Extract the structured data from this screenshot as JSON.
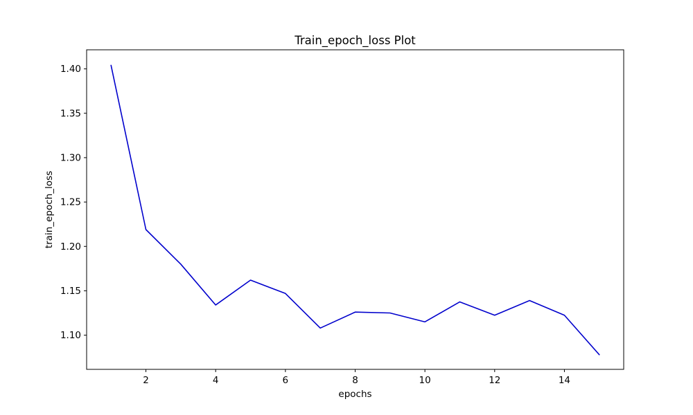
{
  "chart_data": {
    "type": "line",
    "title": "Train_epoch_loss Plot",
    "xlabel": "epochs",
    "ylabel": "train_epoch_loss",
    "xlim": [
      0.3,
      15.7
    ],
    "ylim": [
      1.0615,
      1.4215
    ],
    "xticks": [
      2,
      4,
      6,
      8,
      10,
      12,
      14
    ],
    "xtick_labels": [
      "2",
      "4",
      "6",
      "8",
      "10",
      "12",
      "14"
    ],
    "yticks": [
      1.1,
      1.15,
      1.2,
      1.25,
      1.3,
      1.35,
      1.4
    ],
    "ytick_labels": [
      "1.10",
      "1.15",
      "1.20",
      "1.25",
      "1.30",
      "1.35",
      "1.40"
    ],
    "grid": false,
    "series": [
      {
        "color": "#0000cc",
        "x": [
          1,
          2,
          3,
          4,
          5,
          6,
          7,
          8,
          9,
          10,
          11,
          12,
          13,
          14,
          15
        ],
        "values": [
          1.404,
          1.219,
          1.18,
          1.134,
          1.162,
          1.147,
          1.108,
          1.126,
          1.125,
          1.115,
          1.1375,
          1.1225,
          1.139,
          1.1225,
          1.078
        ]
      }
    ]
  }
}
